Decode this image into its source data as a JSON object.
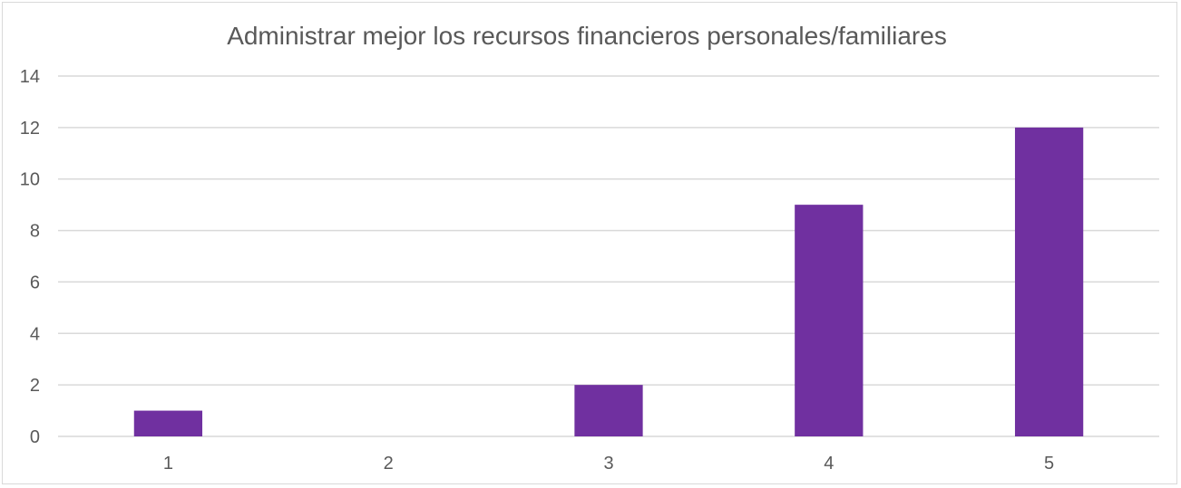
{
  "chart_data": {
    "type": "bar",
    "title": "Administrar mejor los recursos financieros personales/familiares",
    "xlabel": "",
    "ylabel": "",
    "categories": [
      "1",
      "2",
      "3",
      "4",
      "5"
    ],
    "values": [
      1,
      0,
      2,
      9,
      12
    ],
    "ylim": [
      0,
      14
    ],
    "yticks": [
      "0",
      "2",
      "4",
      "6",
      "8",
      "10",
      "12",
      "14"
    ],
    "grid": true,
    "legend": "none",
    "bar_color": "#7030a0"
  }
}
